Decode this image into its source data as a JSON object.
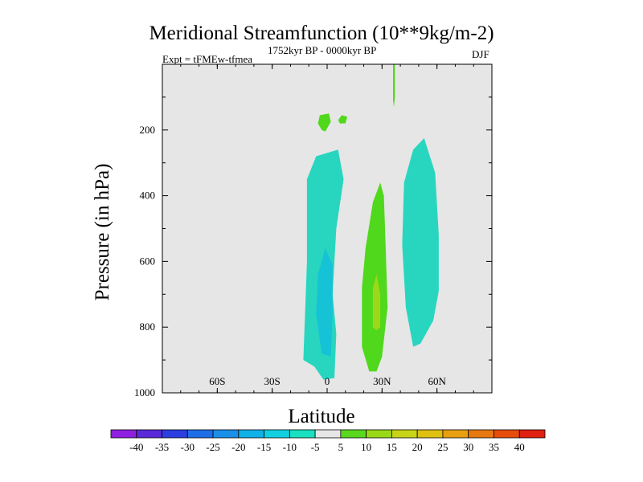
{
  "chart_data": {
    "type": "contour",
    "title": "Meridional Streamfunction (10**9kg/m-2)",
    "experiment": "Expt = tFMEw-tfmea",
    "period": "1752kyr BP - 0000kyr BP",
    "season": "DJF",
    "xlabel": "Latitude",
    "ylabel": "Pressure (in hPa)",
    "xlim": [
      -90,
      90
    ],
    "ylim": [
      1000,
      0
    ],
    "x_ticks": [
      {
        "value": -60,
        "label": "60S"
      },
      {
        "value": -30,
        "label": "30S"
      },
      {
        "value": 0,
        "label": "0"
      },
      {
        "value": 30,
        "label": "30N"
      },
      {
        "value": 60,
        "label": "60N"
      }
    ],
    "y_ticks": [
      {
        "value": 200,
        "label": "200"
      },
      {
        "value": 400,
        "label": "400"
      },
      {
        "value": 600,
        "label": "600"
      },
      {
        "value": 800,
        "label": "800"
      },
      {
        "value": 1000,
        "label": "1000"
      }
    ],
    "background_color": "#e6e6e6",
    "colorbar": {
      "labels": [
        "-40",
        "-35",
        "-30",
        "-25",
        "-20",
        "-15",
        "-10",
        "-5",
        "5",
        "10",
        "15",
        "20",
        "25",
        "30",
        "35",
        "40"
      ],
      "colors": [
        "#8f1ee0",
        "#5a28d8",
        "#2c3ee0",
        "#1e6ee8",
        "#1a90e8",
        "#10b0e8",
        "#12d0e0",
        "#18e0c0",
        "#e6e6e6",
        "#5ad820",
        "#9ad818",
        "#c8d418",
        "#e0c010",
        "#e8a010",
        "#e87810",
        "#e84c0c",
        "#e02010"
      ]
    },
    "regions": [
      {
        "name": "negative-column-near-equator",
        "level": "-10 to -5",
        "color": "#28d6c0",
        "points": [
          [
            -13,
            900
          ],
          [
            -11,
            600
          ],
          [
            -11,
            350
          ],
          [
            -6,
            280
          ],
          [
            6,
            260
          ],
          [
            9,
            350
          ],
          [
            5,
            500
          ],
          [
            3,
            700
          ],
          [
            5,
            820
          ],
          [
            4,
            955
          ],
          [
            -2,
            960
          ],
          [
            -7,
            920
          ]
        ]
      },
      {
        "name": "negative-core-near-equator",
        "level": "-15 to -10",
        "color": "#16c2d6",
        "points": [
          [
            -3,
            880
          ],
          [
            -6,
            760
          ],
          [
            -5,
            640
          ],
          [
            -1,
            560
          ],
          [
            3,
            610
          ],
          [
            3,
            760
          ],
          [
            2,
            890
          ]
        ]
      },
      {
        "name": "positive-column-30n",
        "level": "5 to 10",
        "color": "#50d81c",
        "points": [
          [
            19,
            860
          ],
          [
            19,
            680
          ],
          [
            21,
            560
          ],
          [
            25,
            420
          ],
          [
            29,
            360
          ],
          [
            31,
            400
          ],
          [
            32,
            560
          ],
          [
            33,
            740
          ],
          [
            30,
            890
          ],
          [
            27,
            935
          ],
          [
            23,
            935
          ]
        ]
      },
      {
        "name": "positive-core-30n",
        "level": "10 to 15",
        "color": "#9cd81a",
        "points": [
          [
            25,
            800
          ],
          [
            25,
            680
          ],
          [
            27,
            640
          ],
          [
            29,
            700
          ],
          [
            29,
            800
          ],
          [
            27,
            810
          ]
        ]
      },
      {
        "name": "negative-column-55n",
        "level": "-10 to -5",
        "color": "#28d6c0",
        "points": [
          [
            43,
            740
          ],
          [
            41,
            550
          ],
          [
            42,
            360
          ],
          [
            47,
            260
          ],
          [
            53,
            225
          ],
          [
            59,
            330
          ],
          [
            61,
            520
          ],
          [
            61,
            690
          ],
          [
            58,
            780
          ],
          [
            51,
            850
          ],
          [
            47,
            860
          ]
        ]
      },
      {
        "name": "positive-blob-upper-1",
        "level": "5 to 10",
        "color": "#50d81c",
        "points": [
          [
            -5,
            180
          ],
          [
            -4,
            155
          ],
          [
            1,
            150
          ],
          [
            2,
            175
          ],
          [
            -1,
            205
          ],
          [
            -3,
            200
          ]
        ]
      },
      {
        "name": "positive-blob-upper-2",
        "level": "5 to 10",
        "color": "#50d81c",
        "points": [
          [
            6,
            170
          ],
          [
            8,
            155
          ],
          [
            11,
            160
          ],
          [
            10,
            180
          ],
          [
            7,
            180
          ]
        ]
      },
      {
        "name": "positive-streak-top",
        "level": "5 to 10",
        "color": "#50d81c",
        "points": [
          [
            36,
            0
          ],
          [
            37,
            0
          ],
          [
            37,
            100
          ],
          [
            36.5,
            130
          ],
          [
            36,
            110
          ]
        ]
      }
    ]
  }
}
